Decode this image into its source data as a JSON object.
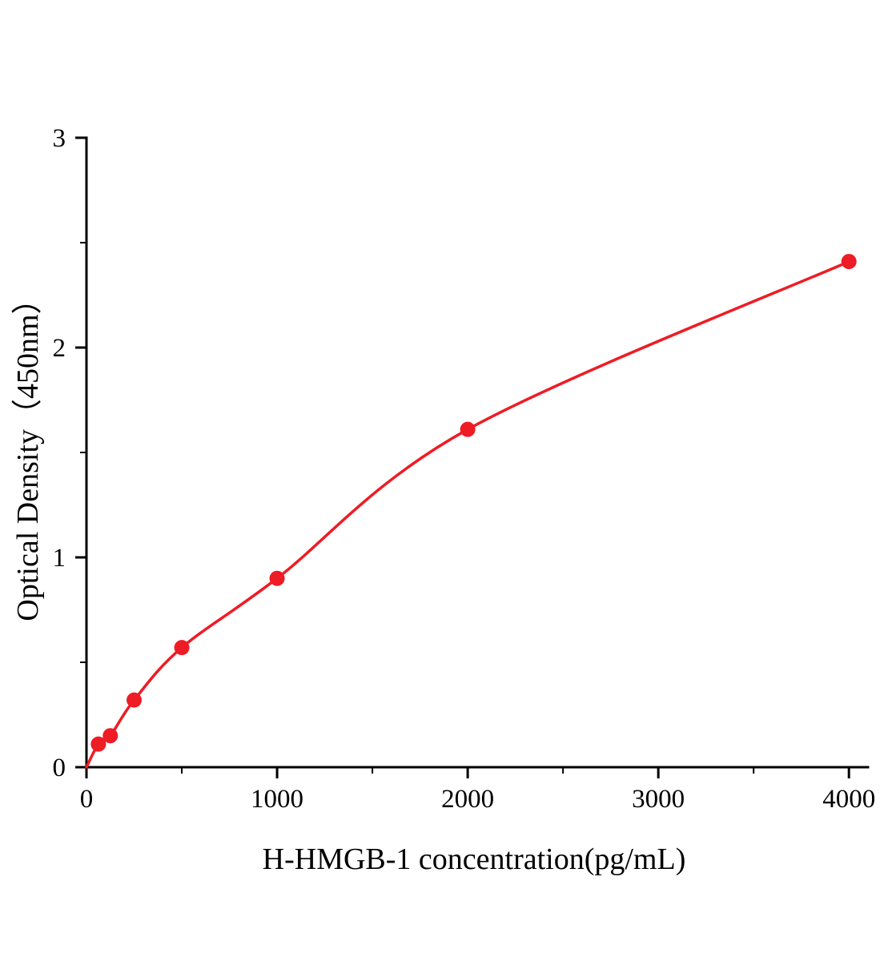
{
  "chart_data": {
    "type": "scatter",
    "title": "",
    "xlabel": "H-HMGB-1 concentration(pg/mL)",
    "ylabel": "Optical Density（450nm）",
    "series": [
      {
        "x": [
          62.5,
          125,
          250,
          500,
          1000,
          2000,
          4000
        ],
        "y": [
          0.11,
          0.15,
          0.32,
          0.57,
          0.9,
          1.61,
          2.41
        ],
        "marker": "circle",
        "color": "#ee1c25"
      }
    ],
    "curve_start": {
      "x": 0,
      "y": 0
    },
    "xlim": [
      0,
      4100
    ],
    "ylim": [
      0,
      3
    ],
    "x_ticks": [
      0,
      1000,
      2000,
      3000,
      4000
    ],
    "x_minor_ticks": [
      500,
      1500,
      2500,
      3500
    ],
    "y_ticks": [
      0,
      1,
      2,
      3
    ],
    "y_minor_ticks": [
      0.5,
      1.5,
      2.5
    ],
    "grid": false,
    "legend": null,
    "axis_color": "#000000",
    "tick_label_color": "#000000",
    "line_color": "#ee1c25",
    "marker_color": "#ee1c25",
    "background_color": "#ffffff"
  }
}
